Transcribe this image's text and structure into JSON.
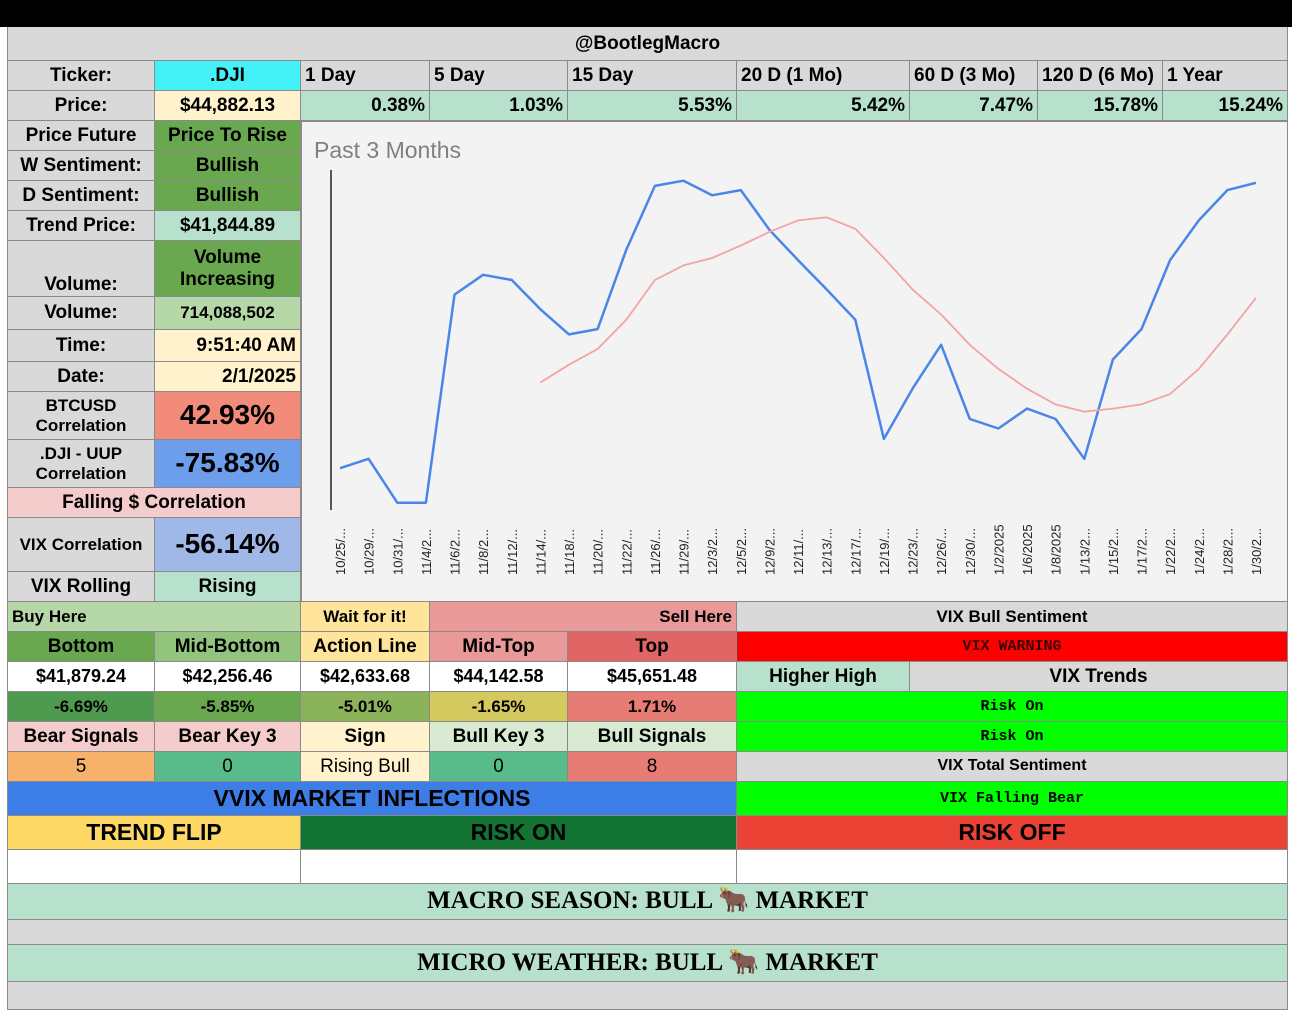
{
  "header": {
    "title": "@BootlegMacro"
  },
  "ticker": {
    "label": "Ticker:",
    "value": ".DJI"
  },
  "periods": [
    "1 Day",
    "5 Day",
    "15 Day",
    "20 D (1 Mo)",
    "60 D (3 Mo)",
    "120 D (6 Mo)",
    "1 Year"
  ],
  "price": {
    "label": "Price:",
    "value": "$44,882.13"
  },
  "returns": [
    "0.38%",
    "1.03%",
    "5.53%",
    "5.42%",
    "7.47%",
    "15.78%",
    "15.24%"
  ],
  "stats": [
    {
      "label": "Price Future",
      "value": "Price To Rise"
    },
    {
      "label": "W Sentiment:",
      "value": "Bullish"
    },
    {
      "label": "D Sentiment:",
      "value": "Bullish"
    },
    {
      "label": "Trend Price:",
      "value": "$41,844.89"
    },
    {
      "label": "Volume:",
      "value": "Volume Increasing"
    },
    {
      "label": "Volume:",
      "value": "714,088,502"
    },
    {
      "label": "Time:",
      "value": "9:51:40 AM"
    },
    {
      "label": "Date:",
      "value": "2/1/2025"
    },
    {
      "label": "BTCUSD Correlation",
      "value": "42.93%"
    },
    {
      "label": ".DJI - UUP Correlation",
      "value": "-75.83%"
    },
    {
      "label": "VIX Correlation",
      "value": "-56.14%"
    },
    {
      "label": "VIX Rolling",
      "value": "Rising"
    }
  ],
  "falling_correlation": "Falling $ Correlation",
  "zones": {
    "buy": "Buy Here",
    "wait": "Wait for it!",
    "sell": "Sell Here",
    "vix_bull": "VIX Bull Sentiment"
  },
  "levels": {
    "names": [
      "Bottom",
      "Mid-Bottom",
      "Action Line",
      "Mid-Top",
      "Top"
    ],
    "prices": [
      "$41,879.24",
      "$42,256.46",
      "$42,633.68",
      "$44,142.58",
      "$45,651.48"
    ],
    "changes": [
      "-6.69%",
      "-5.85%",
      "-5.01%",
      "-1.65%",
      "1.71%"
    ]
  },
  "vix": {
    "warning": "VIX WARNING",
    "higher_high": "Higher High",
    "trends": "VIX Trends",
    "risk_1": "Risk On",
    "risk_2": "Risk On",
    "total": "VIX Total Sentiment",
    "total_value": "VIX Falling Bear"
  },
  "signals": {
    "names": [
      "Bear Signals",
      "Bear Key 3",
      "Sign",
      "Bull Key 3",
      "Bull Signals"
    ],
    "values": [
      "5",
      "0",
      "Rising Bull",
      "0",
      "8"
    ]
  },
  "inflections": {
    "title": "VVIX MARKET INFLECTIONS",
    "trend_flip": "TREND FLIP",
    "risk_on": "RISK ON",
    "risk_off": "RISK OFF"
  },
  "macro": "MACRO SEASON: BULL 🐂 MARKET",
  "micro": "MICRO WEATHER: BULL 🐂 MARKET",
  "chart_data": {
    "type": "line",
    "title": "Past 3 Months",
    "categories": [
      "10/25/...",
      "10/29/...",
      "10/31/...",
      "11/4/2...",
      "11/6/2...",
      "11/8/2...",
      "11/12/...",
      "11/14/...",
      "11/18/...",
      "11/20/...",
      "11/22/...",
      "11/26/...",
      "11/29/...",
      "12/3/2...",
      "12/5/2...",
      "12/9/2...",
      "12/11/...",
      "12/13/...",
      "12/17/...",
      "12/19/...",
      "12/23/...",
      "12/26/...",
      "12/30/...",
      "1/2/2025",
      "1/6/2025",
      "1/8/2025",
      "1/13/2...",
      "1/15/2...",
      "1/17/2...",
      "1/22/2...",
      "1/24/2...",
      "1/28/2...",
      "1/30/2..."
    ],
    "series": [
      {
        "color": "#4a86e8",
        "values": [
          42150,
          42240,
          41820,
          41820,
          43810,
          44000,
          43950,
          43670,
          43430,
          43480,
          44240,
          44850,
          44900,
          44760,
          44810,
          44430,
          44140,
          43860,
          43570,
          42430,
          42910,
          43330,
          42620,
          42530,
          42720,
          42620,
          42240,
          43190,
          43480,
          44140,
          44520,
          44810,
          44880
        ]
      },
      {
        "color": "#f4a3a3",
        "values": [
          null,
          null,
          null,
          null,
          null,
          null,
          null,
          42970,
          43140,
          43290,
          43570,
          43950,
          44090,
          44160,
          44280,
          44410,
          44520,
          44550,
          44440,
          44160,
          43860,
          43620,
          43330,
          43100,
          42910,
          42760,
          42690,
          42720,
          42760,
          42860,
          43100,
          43430,
          43780
        ]
      }
    ],
    "ylim": [
      41750,
      45050
    ]
  }
}
